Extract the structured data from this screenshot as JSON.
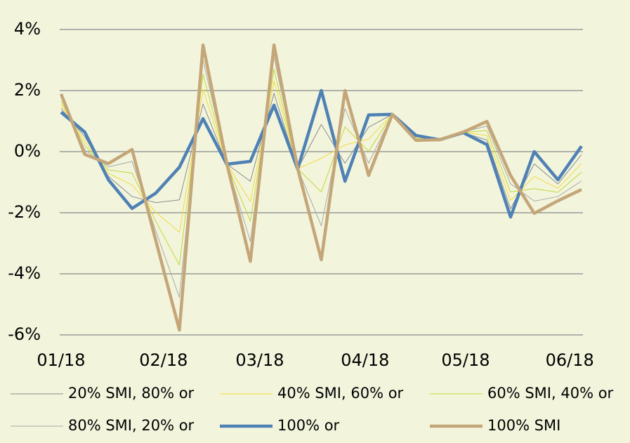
{
  "chart_data": {
    "type": "line",
    "x": [
      0,
      1,
      2,
      3,
      4,
      5,
      6,
      7,
      8,
      9,
      10,
      11,
      12,
      13,
      14,
      15,
      16,
      17,
      18,
      19,
      20,
      21,
      22
    ],
    "xlim": [
      0,
      22
    ],
    "xticks": [
      {
        "value": 0,
        "label": "01/18"
      },
      {
        "value": 4.33,
        "label": "02/18"
      },
      {
        "value": 8.4,
        "label": "03/18"
      },
      {
        "value": 12.85,
        "label": "04/18"
      },
      {
        "value": 17.1,
        "label": "05/18"
      },
      {
        "value": 21.5,
        "label": "06/18"
      }
    ],
    "ylim": [
      -6,
      4
    ],
    "yticks": [
      {
        "value": 4,
        "label": "4%"
      },
      {
        "value": 2,
        "label": "2%"
      },
      {
        "value": 0,
        "label": "0%"
      },
      {
        "value": -2,
        "label": "-2%"
      },
      {
        "value": -4,
        "label": "-4%"
      },
      {
        "value": -6,
        "label": "-6%"
      }
    ],
    "grid": true,
    "series": [
      {
        "name": "20% SMI, 80% or",
        "color": "#8c8c8c",
        "line_width": 1,
        "values": [
          1.41,
          0.49,
          -0.81,
          -1.47,
          -1.67,
          -1.58,
          1.56,
          -0.4,
          -0.97,
          1.91,
          -0.57,
          0.89,
          -0.38,
          0.8,
          1.22,
          0.5,
          0.39,
          0.62,
          0.38,
          -1.87,
          -0.4,
          -1.06,
          -0.1
        ]
      },
      {
        "name": "40% SMI, 60% or",
        "color": "#f2da3c",
        "line_width": 1,
        "values": [
          1.53,
          0.35,
          -0.71,
          -1.09,
          -1.98,
          -2.64,
          2.04,
          -0.39,
          -1.63,
          2.31,
          -0.56,
          -0.22,
          0.22,
          0.41,
          1.22,
          0.47,
          0.39,
          0.63,
          0.53,
          -1.6,
          -0.81,
          -1.2,
          -0.39
        ]
      },
      {
        "name": "60% SMI, 40% or",
        "color": "#c3d636",
        "line_width": 1,
        "values": [
          1.65,
          0.2,
          -0.6,
          -0.7,
          -2.28,
          -3.71,
          2.53,
          -0.39,
          -2.28,
          2.7,
          -0.56,
          -1.32,
          0.81,
          0.01,
          1.22,
          0.43,
          0.39,
          0.63,
          0.69,
          -1.32,
          -1.21,
          -1.33,
          -0.67
        ]
      },
      {
        "name": "80% SMI, 20% or",
        "color": "#a9a9a9",
        "line_width": 1,
        "values": [
          1.77,
          0.06,
          -0.5,
          -0.32,
          -2.59,
          -4.77,
          3.01,
          -0.38,
          -2.94,
          3.1,
          -0.55,
          -2.43,
          1.41,
          -0.38,
          1.22,
          0.4,
          0.39,
          0.64,
          0.84,
          -1.05,
          -1.62,
          -1.47,
          -0.96
        ]
      },
      {
        "name": "100% or",
        "color": "#4f81b5",
        "line_width": 4.5,
        "values": [
          1.29,
          0.64,
          -0.92,
          -1.86,
          -1.36,
          -0.51,
          1.08,
          -0.41,
          -0.32,
          1.52,
          -0.57,
          2.0,
          -0.97,
          1.2,
          1.22,
          0.53,
          0.39,
          0.62,
          0.23,
          -2.14,
          0,
          -0.92,
          0.18
        ]
      },
      {
        "name": "100% SMI",
        "color": "#c4a679",
        "line_width": 4.5,
        "values": [
          1.89,
          -0.09,
          -0.39,
          0.07,
          -2.9,
          -5.84,
          3.49,
          -0.37,
          -3.59,
          3.49,
          -0.55,
          -3.54,
          2.0,
          -0.78,
          1.22,
          0.37,
          0.39,
          0.64,
          0.99,
          -0.78,
          -2.02,
          -1.61,
          -1.24
        ]
      }
    ]
  }
}
